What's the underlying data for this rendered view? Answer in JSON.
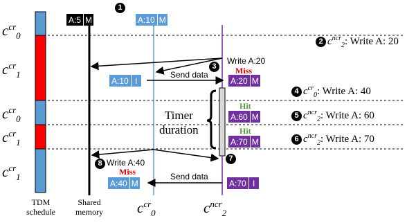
{
  "colors": {
    "cr_blue": "#5b9bd5",
    "cr_red": "#ff0000",
    "purple": "#7030a0",
    "black": "#000000",
    "light_blue_line": "#5b9bd5",
    "purple_line": "#7030a0",
    "miss": "#e00000",
    "hit": "#5a9e3a",
    "timer_bar": "#d9d9d9"
  },
  "tdm_slots": [
    {
      "label_base": "c",
      "label_sup": "cr",
      "label_sub": "0",
      "color": "blue"
    },
    {
      "label_base": "c",
      "label_sup": "cr",
      "label_sub": "1",
      "color": "red"
    },
    {
      "label_base": "c",
      "label_sup": "cr",
      "label_sub": "0",
      "color": "blue"
    },
    {
      "label_base": "c",
      "label_sup": "cr",
      "label_sub": "1",
      "color": "red"
    },
    {
      "label_base": "c",
      "label_sup": "cr",
      "label_sub": "1",
      "color": "blue"
    }
  ],
  "cache_lines": {
    "shared_top": {
      "addr": "A:5",
      "state": "M"
    },
    "cr0_top": {
      "addr": "A:10",
      "state": "M"
    },
    "cr0_invalid": {
      "addr": "A:10",
      "state": "I"
    },
    "ncr_miss": {
      "addr": "A:20",
      "state": "M"
    },
    "ncr_hit1": {
      "addr": "A:60",
      "state": "M"
    },
    "ncr_hit2": {
      "addr": "A:70",
      "state": "M"
    },
    "cr0_bottom": {
      "addr": "A:40",
      "state": "M"
    },
    "ncr_bottom": {
      "addr": "A:70",
      "state": "I"
    }
  },
  "events": {
    "e1": {
      "num": "1"
    },
    "e2": {
      "num": "2",
      "core": "c",
      "sup": "ncr",
      "sub": "2",
      "text": ": Write A: 20"
    },
    "e3": {
      "num": "3"
    },
    "e4": {
      "num": "4",
      "core": "c",
      "sup": "cr",
      "sub": "0",
      "text": ": Write A: 40"
    },
    "e5": {
      "num": "5",
      "core": "c",
      "sup": "ncr",
      "sub": "2",
      "text": ": Write A: 60"
    },
    "e6": {
      "num": "6",
      "core": "c",
      "sup": "ncr",
      "sub": "2",
      "text": ": Write A: 70"
    },
    "e7": {
      "num": "7"
    },
    "e8": {
      "num": "8"
    }
  },
  "annotations": {
    "write_a20": "Write A:20",
    "write_a40": "Write A:40",
    "send_data_top": "Send data",
    "send_data_bottom": "Send data",
    "miss_top": "Miss",
    "miss_bottom": "Miss",
    "hit_1": "Hit",
    "hit_2": "Hit",
    "timer_line1": "Timer",
    "timer_line2": "duration"
  },
  "bottom_labels": {
    "tdm": "TDM schedule",
    "shared": "Shared memory",
    "cr0": {
      "base": "c",
      "sup": "cr",
      "sub": "0"
    },
    "ncr2": {
      "base": "c",
      "sup": "ncr",
      "sub": "2"
    }
  }
}
